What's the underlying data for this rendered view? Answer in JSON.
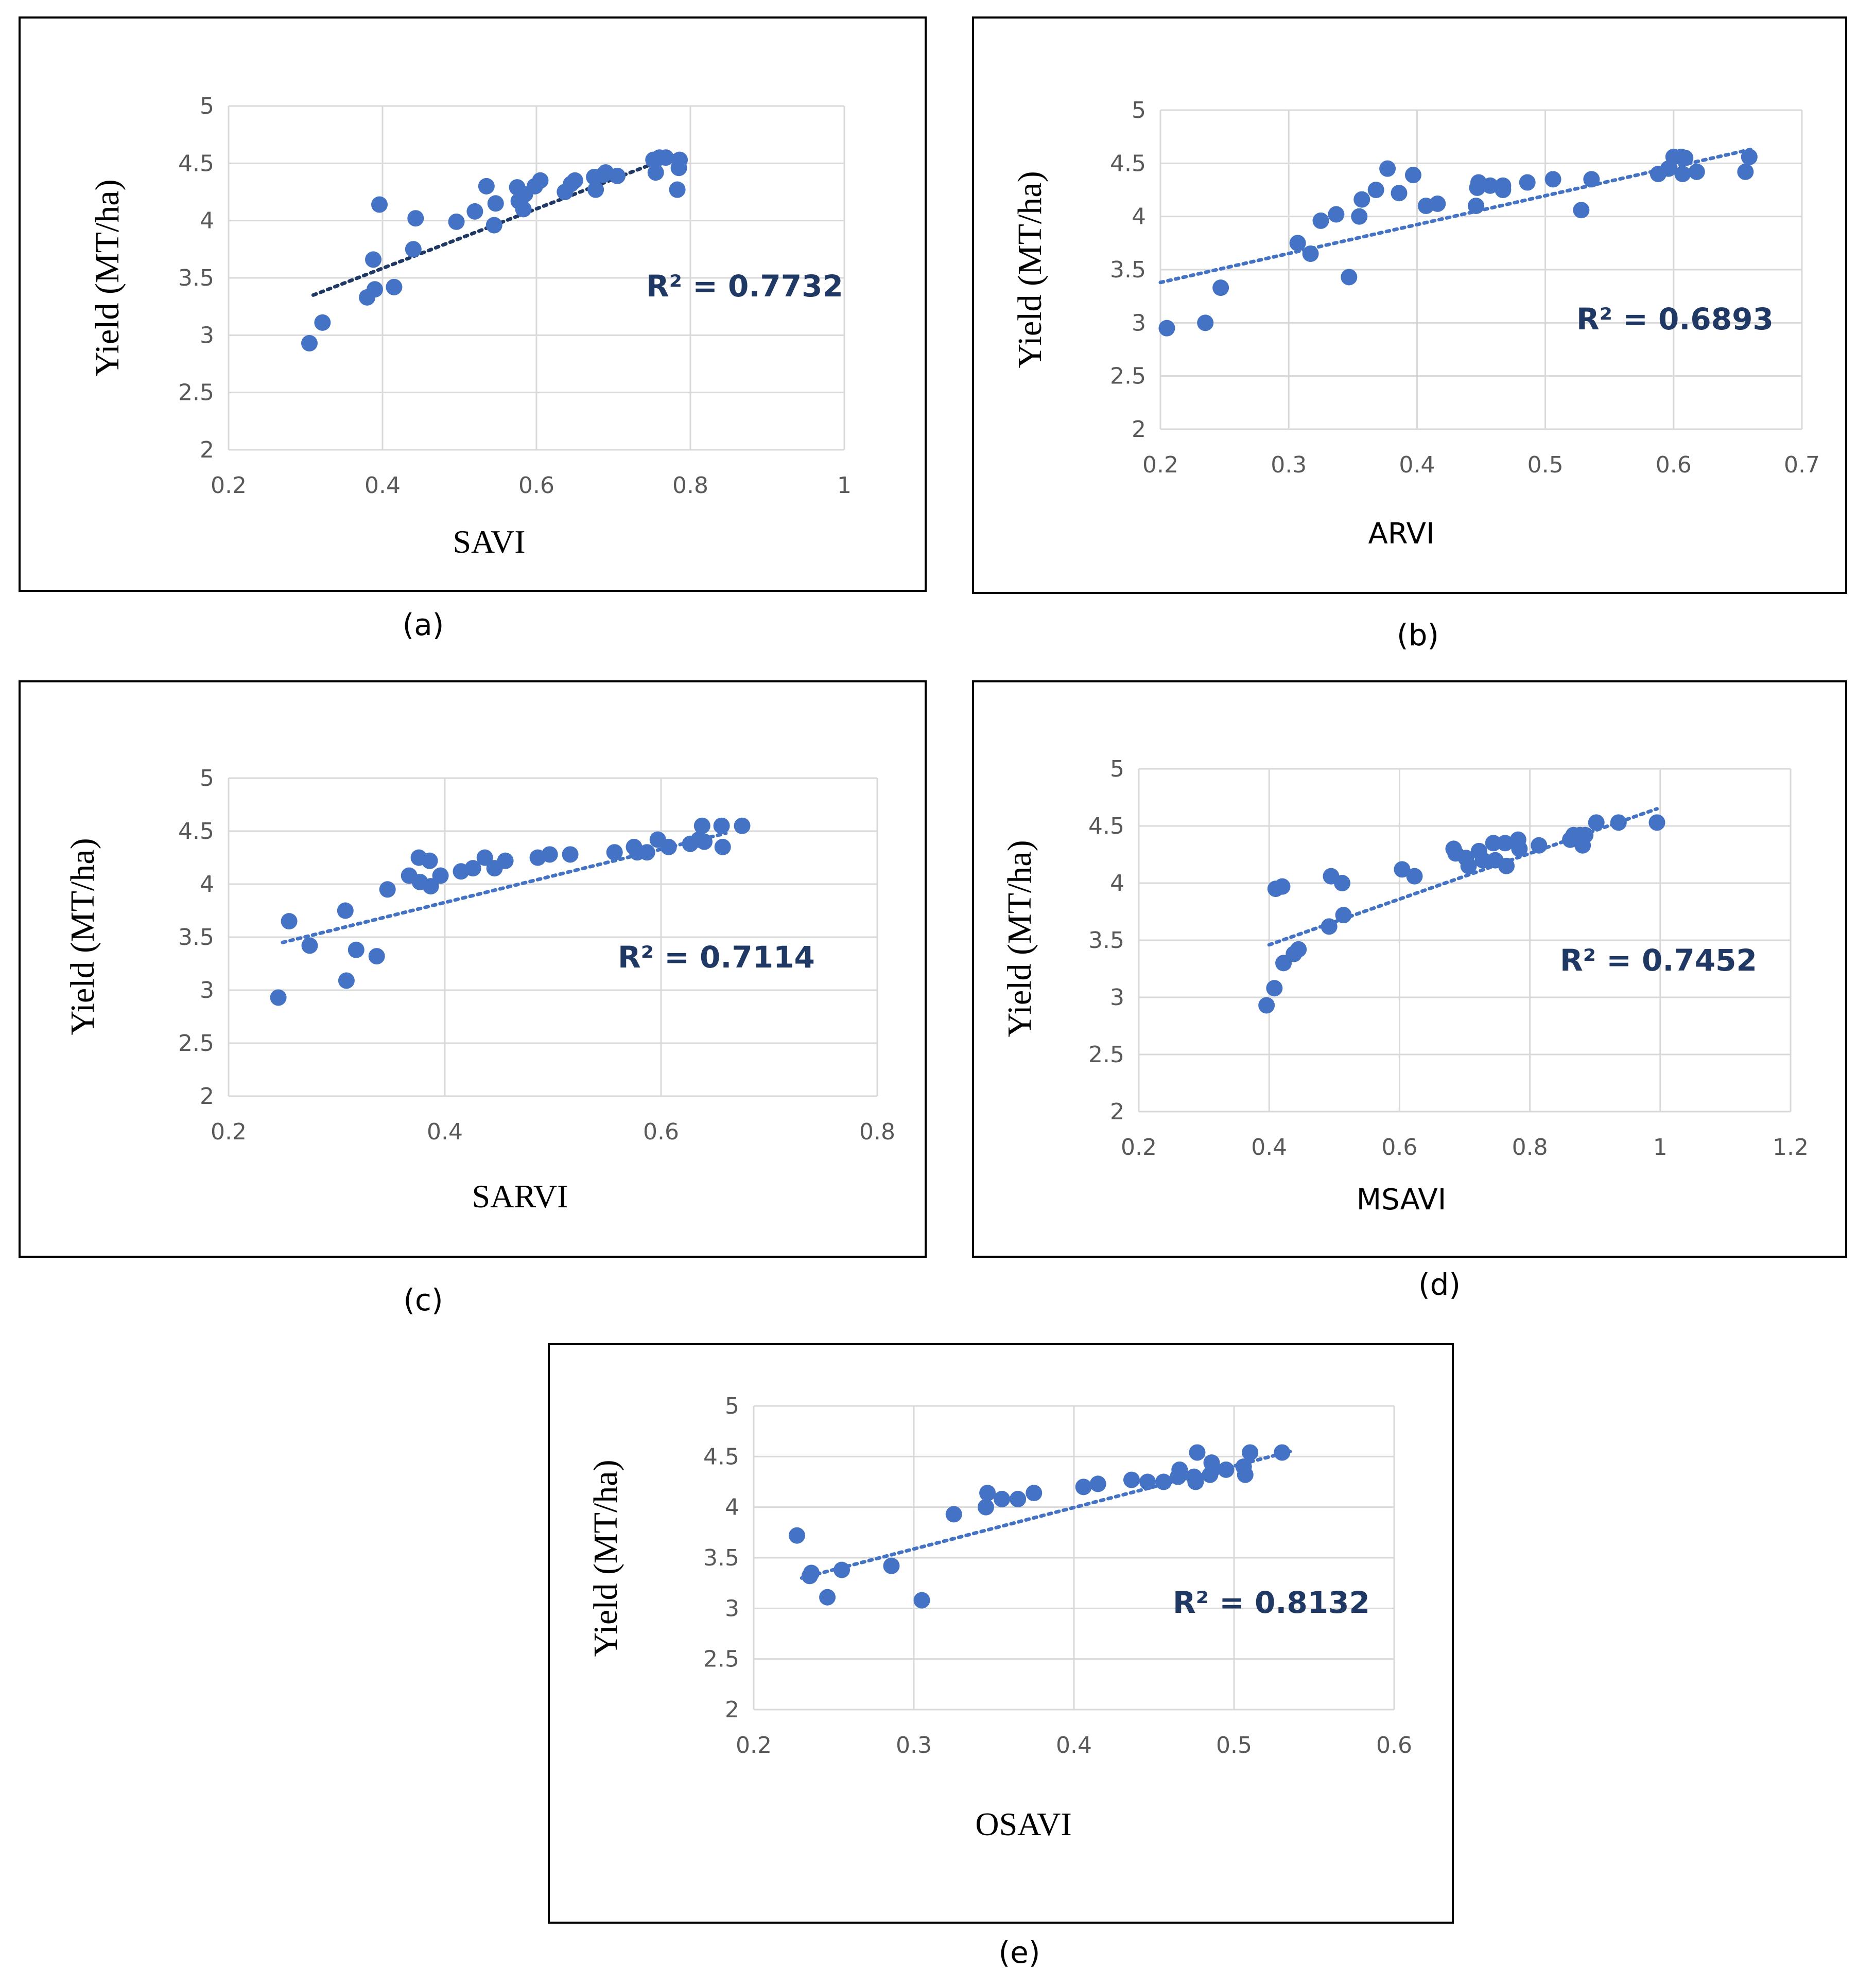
{
  "colors": {
    "marker": "#4472C4",
    "trend_dark": "#1F3864",
    "trend_light": "#4472C4",
    "r2": "#1F3864",
    "grid": "#D9D9D9"
  },
  "chart_data": [
    {
      "type": "scatter",
      "id": "a",
      "caption": "(a)",
      "xlabel": "SAVI",
      "ylabel": "Yield (MT/ha)",
      "xlim": [
        0.2,
        1
      ],
      "ylim": [
        2,
        5
      ],
      "xticks": [
        "0.2",
        "0.4",
        "0.6",
        "0.8",
        "1"
      ],
      "yticks": [
        "2",
        "2.5",
        "3",
        "3.5",
        "4",
        "4.5",
        "5"
      ],
      "r2_label": "R² = 0.7732",
      "trendline": [
        [
          0.31,
          3.35
        ],
        [
          0.78,
          4.57
        ]
      ],
      "points": [
        [
          0.305,
          2.93
        ],
        [
          0.322,
          3.11
        ],
        [
          0.38,
          3.33
        ],
        [
          0.39,
          3.4
        ],
        [
          0.388,
          3.66
        ],
        [
          0.396,
          4.14
        ],
        [
          0.415,
          3.42
        ],
        [
          0.44,
          3.75
        ],
        [
          0.443,
          4.02
        ],
        [
          0.496,
          3.99
        ],
        [
          0.52,
          4.08
        ],
        [
          0.535,
          4.3
        ],
        [
          0.545,
          3.96
        ],
        [
          0.547,
          4.15
        ],
        [
          0.575,
          4.29
        ],
        [
          0.577,
          4.17
        ],
        [
          0.583,
          4.1
        ],
        [
          0.585,
          4.23
        ],
        [
          0.598,
          4.3
        ],
        [
          0.605,
          4.35
        ],
        [
          0.637,
          4.25
        ],
        [
          0.645,
          4.32
        ],
        [
          0.65,
          4.35
        ],
        [
          0.675,
          4.38
        ],
        [
          0.677,
          4.27
        ],
        [
          0.687,
          4.4
        ],
        [
          0.69,
          4.42
        ],
        [
          0.705,
          4.39
        ],
        [
          0.752,
          4.53
        ],
        [
          0.755,
          4.42
        ],
        [
          0.76,
          4.55
        ],
        [
          0.768,
          4.55
        ],
        [
          0.783,
          4.27
        ],
        [
          0.785,
          4.46
        ],
        [
          0.786,
          4.53
        ]
      ]
    },
    {
      "type": "scatter",
      "id": "b",
      "caption": "(b)",
      "xlabel": "ARVI",
      "ylabel": "Yield (MT/ha)",
      "xlim": [
        0.2,
        0.7
      ],
      "ylim": [
        2,
        5
      ],
      "xticks": [
        "0.2",
        "0.3",
        "0.4",
        "0.5",
        "0.6",
        "0.7"
      ],
      "yticks": [
        "2",
        "2.5",
        "3",
        "3.5",
        "4",
        "4.5",
        "5"
      ],
      "r2_label": "R² = 0.6893",
      "trendline": [
        [
          0.2,
          3.38
        ],
        [
          0.66,
          4.63
        ]
      ],
      "points": [
        [
          0.205,
          2.95
        ],
        [
          0.235,
          3.0
        ],
        [
          0.247,
          3.33
        ],
        [
          0.307,
          3.75
        ],
        [
          0.317,
          3.65
        ],
        [
          0.325,
          3.96
        ],
        [
          0.337,
          4.02
        ],
        [
          0.347,
          3.43
        ],
        [
          0.355,
          4.0
        ],
        [
          0.357,
          4.16
        ],
        [
          0.368,
          4.25
        ],
        [
          0.377,
          4.45
        ],
        [
          0.386,
          4.22
        ],
        [
          0.397,
          4.39
        ],
        [
          0.407,
          4.1
        ],
        [
          0.416,
          4.12
        ],
        [
          0.446,
          4.1
        ],
        [
          0.447,
          4.27
        ],
        [
          0.448,
          4.32
        ],
        [
          0.457,
          4.29
        ],
        [
          0.467,
          4.25
        ],
        [
          0.467,
          4.29
        ],
        [
          0.486,
          4.32
        ],
        [
          0.506,
          4.35
        ],
        [
          0.528,
          4.06
        ],
        [
          0.536,
          4.35
        ],
        [
          0.588,
          4.4
        ],
        [
          0.596,
          4.45
        ],
        [
          0.6,
          4.56
        ],
        [
          0.606,
          4.56
        ],
        [
          0.607,
          4.4
        ],
        [
          0.609,
          4.55
        ],
        [
          0.618,
          4.42
        ],
        [
          0.656,
          4.42
        ],
        [
          0.659,
          4.56
        ]
      ]
    },
    {
      "type": "scatter",
      "id": "c",
      "caption": "(c)",
      "xlabel": "SARVI",
      "ylabel": "Yield (MT/ha)",
      "xlim": [
        0.2,
        0.8
      ],
      "ylim": [
        2,
        5
      ],
      "xticks": [
        "0.2",
        "0.4",
        "0.6",
        "0.8"
      ],
      "yticks": [
        "2",
        "2.5",
        "3",
        "3.5",
        "4",
        "4.5",
        "5"
      ],
      "r2_label": "R² = 0.7114",
      "trendline": [
        [
          0.25,
          3.45
        ],
        [
          0.66,
          4.48
        ]
      ],
      "points": [
        [
          0.246,
          2.93
        ],
        [
          0.256,
          3.65
        ],
        [
          0.275,
          3.42
        ],
        [
          0.308,
          3.75
        ],
        [
          0.309,
          3.09
        ],
        [
          0.318,
          3.38
        ],
        [
          0.337,
          3.32
        ],
        [
          0.347,
          3.95
        ],
        [
          0.367,
          4.08
        ],
        [
          0.376,
          4.25
        ],
        [
          0.377,
          4.02
        ],
        [
          0.386,
          4.22
        ],
        [
          0.387,
          3.98
        ],
        [
          0.396,
          4.08
        ],
        [
          0.415,
          4.12
        ],
        [
          0.426,
          4.15
        ],
        [
          0.437,
          4.25
        ],
        [
          0.446,
          4.15
        ],
        [
          0.456,
          4.22
        ],
        [
          0.486,
          4.25
        ],
        [
          0.497,
          4.28
        ],
        [
          0.516,
          4.28
        ],
        [
          0.557,
          4.3
        ],
        [
          0.575,
          4.35
        ],
        [
          0.578,
          4.3
        ],
        [
          0.587,
          4.3
        ],
        [
          0.597,
          4.42
        ],
        [
          0.607,
          4.35
        ],
        [
          0.627,
          4.38
        ],
        [
          0.635,
          4.42
        ],
        [
          0.638,
          4.55
        ],
        [
          0.64,
          4.4
        ],
        [
          0.656,
          4.55
        ],
        [
          0.657,
          4.35
        ],
        [
          0.675,
          4.55
        ]
      ]
    },
    {
      "type": "scatter",
      "id": "d",
      "caption": "(d)",
      "xlabel": "MSAVI",
      "ylabel": "Yield (MT/ha)",
      "xlim": [
        0.2,
        1.2
      ],
      "ylim": [
        2,
        5
      ],
      "xticks": [
        "0.2",
        "0.4",
        "0.6",
        "0.8",
        "1",
        "1.2"
      ],
      "yticks": [
        "2",
        "2.5",
        "3",
        "3.5",
        "4",
        "4.5",
        "5"
      ],
      "r2_label": "R² = 0.7452",
      "trendline": [
        [
          0.4,
          3.46
        ],
        [
          0.995,
          4.65
        ]
      ],
      "points": [
        [
          0.396,
          2.93
        ],
        [
          0.408,
          3.08
        ],
        [
          0.41,
          3.95
        ],
        [
          0.42,
          3.97
        ],
        [
          0.422,
          3.3
        ],
        [
          0.438,
          3.38
        ],
        [
          0.445,
          3.42
        ],
        [
          0.492,
          3.62
        ],
        [
          0.495,
          4.06
        ],
        [
          0.512,
          4.0
        ],
        [
          0.514,
          3.72
        ],
        [
          0.604,
          4.12
        ],
        [
          0.623,
          4.06
        ],
        [
          0.683,
          4.3
        ],
        [
          0.686,
          4.26
        ],
        [
          0.702,
          4.22
        ],
        [
          0.706,
          4.15
        ],
        [
          0.722,
          4.28
        ],
        [
          0.728,
          4.2
        ],
        [
          0.744,
          4.35
        ],
        [
          0.747,
          4.2
        ],
        [
          0.762,
          4.35
        ],
        [
          0.764,
          4.15
        ],
        [
          0.782,
          4.38
        ],
        [
          0.784,
          4.3
        ],
        [
          0.814,
          4.33
        ],
        [
          0.862,
          4.38
        ],
        [
          0.867,
          4.42
        ],
        [
          0.877,
          4.42
        ],
        [
          0.881,
          4.33
        ],
        [
          0.885,
          4.42
        ],
        [
          0.902,
          4.53
        ],
        [
          0.936,
          4.53
        ],
        [
          0.995,
          4.53
        ]
      ]
    },
    {
      "type": "scatter",
      "id": "e",
      "caption": "(e)",
      "xlabel": "OSAVI",
      "ylabel": "Yield (MT/ha)",
      "xlim": [
        0.2,
        0.6
      ],
      "ylim": [
        2,
        5
      ],
      "xticks": [
        "0.2",
        "0.3",
        "0.4",
        "0.5",
        "0.6"
      ],
      "yticks": [
        "2",
        "2.5",
        "3",
        "3.5",
        "4",
        "4.5",
        "5"
      ],
      "r2_label": "R² = 0.8132",
      "trendline": [
        [
          0.23,
          3.3
        ],
        [
          0.535,
          4.55
        ]
      ],
      "points": [
        [
          0.227,
          3.72
        ],
        [
          0.235,
          3.32
        ],
        [
          0.236,
          3.35
        ],
        [
          0.246,
          3.11
        ],
        [
          0.255,
          3.38
        ],
        [
          0.286,
          3.42
        ],
        [
          0.305,
          3.08
        ],
        [
          0.325,
          3.93
        ],
        [
          0.345,
          4.0
        ],
        [
          0.346,
          4.14
        ],
        [
          0.355,
          4.08
        ],
        [
          0.365,
          4.08
        ],
        [
          0.375,
          4.14
        ],
        [
          0.406,
          4.2
        ],
        [
          0.415,
          4.23
        ],
        [
          0.436,
          4.27
        ],
        [
          0.446,
          4.25
        ],
        [
          0.456,
          4.25
        ],
        [
          0.465,
          4.3
        ],
        [
          0.466,
          4.37
        ],
        [
          0.475,
          4.3
        ],
        [
          0.476,
          4.25
        ],
        [
          0.477,
          4.54
        ],
        [
          0.485,
          4.32
        ],
        [
          0.486,
          4.44
        ],
        [
          0.487,
          4.38
        ],
        [
          0.495,
          4.37
        ],
        [
          0.506,
          4.4
        ],
        [
          0.507,
          4.32
        ],
        [
          0.51,
          4.54
        ],
        [
          0.53,
          4.54
        ]
      ]
    }
  ]
}
